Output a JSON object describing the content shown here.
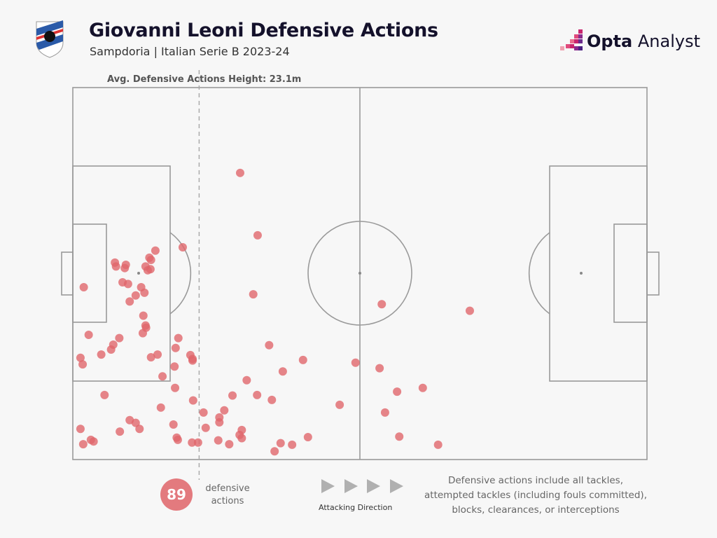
{
  "header": {
    "title": "Giovanni Leoni Defensive Actions",
    "subtitle": "Sampdoria | Italian Serie B 2023-24",
    "brand_bold": "Opta",
    "brand_rest": " Analyst"
  },
  "footer": {
    "count": "89",
    "count_label_1": "defensive",
    "count_label_2": "actions",
    "direction_label": "Attacking Direction",
    "note_lines": [
      "Defensive actions include all tackles,",
      "attempted tackles (including fouls committed),",
      "blocks, clearances, or interceptions"
    ]
  },
  "colors": {
    "point": "#e0666c",
    "line": "#9a9a9a",
    "accent": "#c8266e"
  },
  "chart_data": {
    "type": "scatter",
    "title": "Giovanni Leoni Defensive Actions",
    "units": "meters",
    "xlim": [
      0,
      105
    ],
    "ylim": [
      0,
      68
    ],
    "avg_line": {
      "label": "Avg. Defensive Actions Height: 23.1m",
      "x": 23.1
    },
    "points": [
      [
        30.6,
        15.6
      ],
      [
        33.8,
        27.0
      ],
      [
        20.1,
        29.2
      ],
      [
        15.1,
        29.8
      ],
      [
        14.0,
        31.1
      ],
      [
        7.7,
        32.0
      ],
      [
        9.7,
        32.4
      ],
      [
        7.9,
        32.7
      ],
      [
        9.5,
        33.0
      ],
      [
        14.3,
        31.5
      ],
      [
        13.3,
        32.7
      ],
      [
        14.2,
        33.2
      ],
      [
        13.7,
        33.4
      ],
      [
        2.0,
        36.5
      ],
      [
        9.1,
        35.6
      ],
      [
        10.1,
        35.9
      ],
      [
        12.5,
        36.5
      ],
      [
        13.1,
        37.5
      ],
      [
        11.5,
        38.0
      ],
      [
        10.4,
        39.1
      ],
      [
        33.0,
        37.8
      ],
      [
        56.5,
        39.6
      ],
      [
        72.6,
        40.8
      ],
      [
        12.9,
        41.7
      ],
      [
        13.3,
        43.5
      ],
      [
        13.4,
        43.9
      ],
      [
        12.8,
        44.9
      ],
      [
        2.9,
        45.2
      ],
      [
        8.5,
        45.8
      ],
      [
        19.3,
        45.8
      ],
      [
        7.4,
        47.0
      ],
      [
        7.0,
        47.9
      ],
      [
        35.9,
        47.1
      ],
      [
        5.2,
        48.8
      ],
      [
        15.5,
        48.8
      ],
      [
        18.8,
        47.6
      ],
      [
        14.3,
        49.3
      ],
      [
        21.5,
        48.9
      ],
      [
        21.9,
        49.6
      ],
      [
        21.9,
        49.9
      ],
      [
        1.4,
        49.4
      ],
      [
        1.8,
        50.6
      ],
      [
        42.1,
        49.8
      ],
      [
        51.7,
        50.3
      ],
      [
        56.1,
        51.3
      ],
      [
        18.6,
        51.0
      ],
      [
        38.4,
        51.9
      ],
      [
        16.4,
        52.8
      ],
      [
        31.8,
        53.5
      ],
      [
        64.0,
        54.9
      ],
      [
        59.3,
        55.6
      ],
      [
        18.7,
        54.9
      ],
      [
        5.8,
        56.2
      ],
      [
        29.2,
        56.3
      ],
      [
        33.7,
        56.2
      ],
      [
        36.4,
        57.1
      ],
      [
        48.8,
        58.0
      ],
      [
        22.0,
        57.2
      ],
      [
        16.1,
        58.5
      ],
      [
        27.7,
        59.0
      ],
      [
        23.9,
        59.4
      ],
      [
        57.1,
        59.4
      ],
      [
        10.4,
        60.8
      ],
      [
        11.5,
        61.3
      ],
      [
        26.8,
        60.3
      ],
      [
        26.8,
        61.2
      ],
      [
        18.4,
        61.6
      ],
      [
        1.4,
        62.4
      ],
      [
        8.6,
        62.9
      ],
      [
        12.2,
        62.4
      ],
      [
        24.3,
        62.2
      ],
      [
        30.9,
        62.6
      ],
      [
        59.7,
        63.8
      ],
      [
        43.0,
        63.9
      ],
      [
        30.5,
        63.5
      ],
      [
        30.9,
        64.1
      ],
      [
        19.0,
        64.0
      ],
      [
        19.2,
        64.4
      ],
      [
        26.6,
        64.5
      ],
      [
        21.8,
        64.9
      ],
      [
        22.9,
        64.9
      ],
      [
        28.6,
        65.2
      ],
      [
        38.0,
        65.0
      ],
      [
        40.1,
        65.3
      ],
      [
        66.8,
        65.3
      ],
      [
        3.3,
        64.4
      ],
      [
        3.8,
        64.7
      ],
      [
        1.9,
        65.2
      ],
      [
        36.9,
        66.5
      ]
    ]
  }
}
